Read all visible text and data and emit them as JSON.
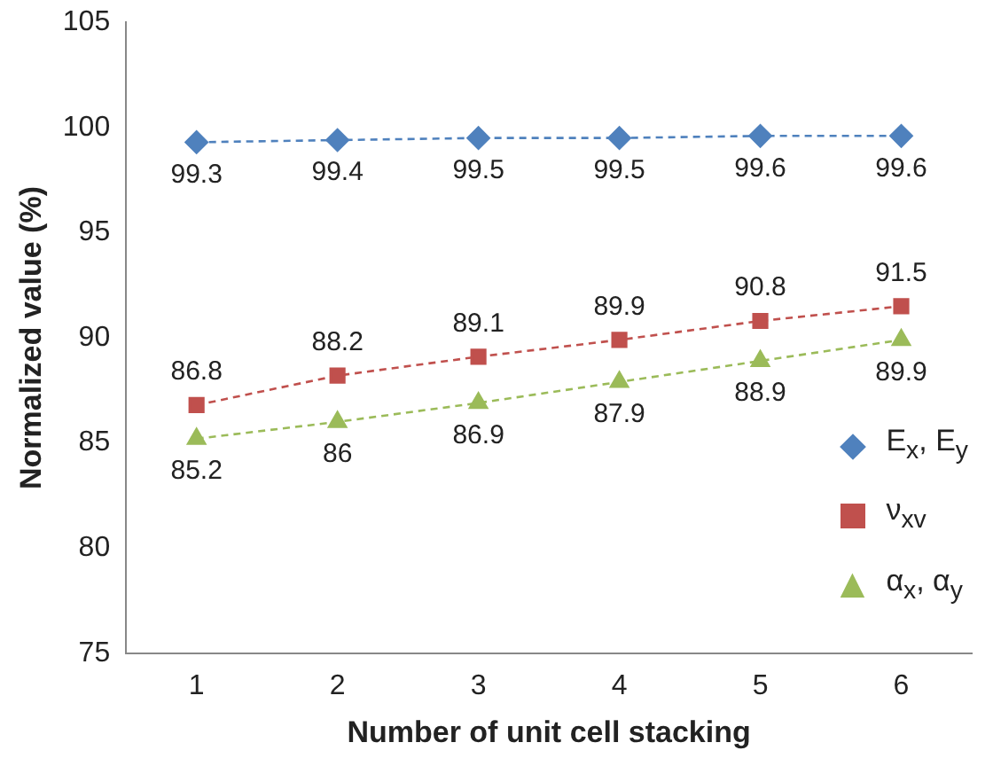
{
  "chart_data": {
    "type": "line",
    "xlabel": "Number of unit cell stacking",
    "ylabel": "Normalized value (%)",
    "categories": [
      "1",
      "2",
      "3",
      "4",
      "5",
      "6"
    ],
    "ylim": [
      75,
      105
    ],
    "yticks": [
      75,
      80,
      85,
      90,
      95,
      100,
      105
    ],
    "grid": false,
    "legend": "bottom right",
    "data_labels": true,
    "line_style": "dashed",
    "series": [
      {
        "name": "E$_{x}$, E$_{y}$",
        "color": "#4f81bd",
        "marker": "diamond",
        "values": [
          99.3,
          99.4,
          99.5,
          99.5,
          99.6,
          99.6
        ]
      },
      {
        "name": "ν$_{xv}$",
        "color": "#c0504d",
        "marker": "square",
        "values": [
          86.8,
          88.2,
          89.1,
          89.9,
          90.8,
          91.5
        ]
      },
      {
        "name": "α$_{x}$, α$_{y}$",
        "color": "#9bbb59",
        "marker": "triangle",
        "values": [
          85.2,
          86,
          86.9,
          87.9,
          88.9,
          89.9
        ]
      }
    ]
  }
}
